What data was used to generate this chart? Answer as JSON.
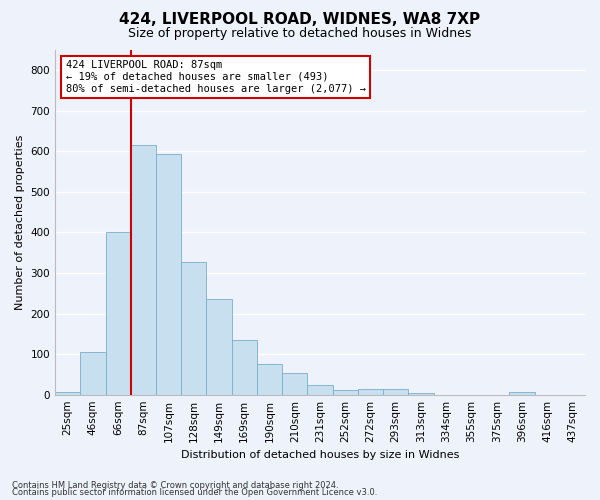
{
  "title1": "424, LIVERPOOL ROAD, WIDNES, WA8 7XP",
  "title2": "Size of property relative to detached houses in Widnes",
  "xlabel": "Distribution of detached houses by size in Widnes",
  "ylabel": "Number of detached properties",
  "footer1": "Contains HM Land Registry data © Crown copyright and database right 2024.",
  "footer2": "Contains public sector information licensed under the Open Government Licence v3.0.",
  "annotation_line1": "424 LIVERPOOL ROAD: 87sqm",
  "annotation_line2": "← 19% of detached houses are smaller (493)",
  "annotation_line3": "80% of semi-detached houses are larger (2,077) →",
  "categories": [
    "25sqm",
    "46sqm",
    "66sqm",
    "87sqm",
    "107sqm",
    "128sqm",
    "149sqm",
    "169sqm",
    "190sqm",
    "210sqm",
    "231sqm",
    "252sqm",
    "272sqm",
    "293sqm",
    "313sqm",
    "334sqm",
    "355sqm",
    "375sqm",
    "396sqm",
    "416sqm",
    "437sqm"
  ],
  "values": [
    7,
    105,
    400,
    615,
    593,
    328,
    237,
    136,
    75,
    53,
    25,
    12,
    15,
    15,
    3,
    0,
    0,
    0,
    7,
    0,
    0
  ],
  "bar_color": "#c8dff0",
  "bar_edge_color": "#7aaecc",
  "red_line_color": "#cc0000",
  "annotation_box_color": "#ffffff",
  "annotation_box_edge": "#cc0000",
  "bg_color": "#eef2fa",
  "grid_color": "#ffffff",
  "ylim": [
    0,
    850
  ],
  "yticks": [
    0,
    100,
    200,
    300,
    400,
    500,
    600,
    700,
    800
  ],
  "title1_fontsize": 11,
  "title2_fontsize": 9,
  "xlabel_fontsize": 8,
  "ylabel_fontsize": 8,
  "tick_fontsize": 7.5,
  "annotation_fontsize": 7.5,
  "footer_fontsize": 6
}
